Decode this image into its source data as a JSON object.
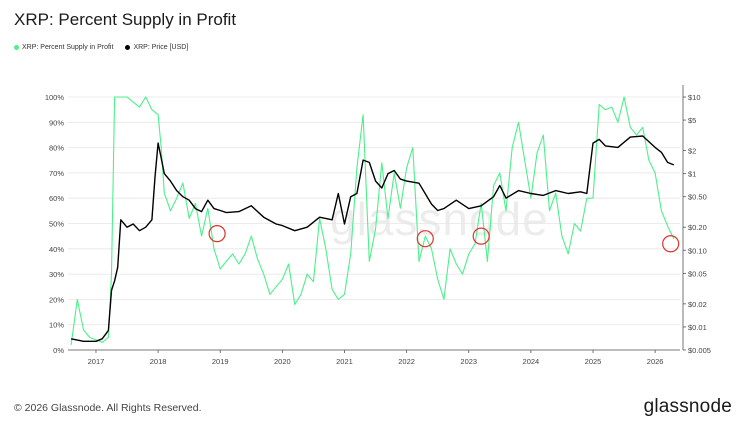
{
  "title": "XRP: Percent Supply in Profit",
  "legend": [
    {
      "label": "XRP: Percent Supply in Profit",
      "color": "#4cf08a"
    },
    {
      "label": "XRP: Price [USD]",
      "color": "#000000"
    }
  ],
  "footer": "© 2026 Glassnode. All Rights Reserved.",
  "brand": "glassnode",
  "watermark": "glassnode",
  "chart_data": {
    "type": "line",
    "x_tick_labels": [
      "2017",
      "2018",
      "2019",
      "2020",
      "2021",
      "2022",
      "2023",
      "2024",
      "2025",
      "2026"
    ],
    "left_axis": {
      "labels": [
        "0%",
        "10%",
        "20%",
        "30%",
        "40%",
        "50%",
        "60%",
        "70%",
        "80%",
        "90%",
        "100%"
      ],
      "range": [
        0,
        100
      ],
      "grid": true
    },
    "right_axis": {
      "labels": [
        "$0.005",
        "$0.01",
        "$0.02",
        "$0.05",
        "$0.10",
        "$0.20",
        "$0.50",
        "$1",
        "$2",
        "$5",
        "$10"
      ],
      "scale": "log",
      "range": [
        0.005,
        10
      ]
    },
    "series": [
      {
        "name": "XRP: Percent Supply in Profit",
        "color": "#4cf08a",
        "axis": "left",
        "x": [
          2016.6,
          2016.7,
          2016.8,
          2016.9,
          2017.0,
          2017.1,
          2017.2,
          2017.25,
          2017.3,
          2017.4,
          2017.5,
          2017.6,
          2017.7,
          2017.8,
          2017.9,
          2018.0,
          2018.05,
          2018.1,
          2018.2,
          2018.3,
          2018.4,
          2018.5,
          2018.6,
          2018.7,
          2018.8,
          2018.9,
          2019.0,
          2019.1,
          2019.2,
          2019.3,
          2019.4,
          2019.5,
          2019.6,
          2019.7,
          2019.8,
          2019.9,
          2020.0,
          2020.1,
          2020.2,
          2020.3,
          2020.4,
          2020.5,
          2020.6,
          2020.7,
          2020.8,
          2020.9,
          2021.0,
          2021.1,
          2021.2,
          2021.3,
          2021.4,
          2021.5,
          2021.6,
          2021.7,
          2021.8,
          2021.9,
          2022.0,
          2022.1,
          2022.2,
          2022.3,
          2022.4,
          2022.5,
          2022.6,
          2022.7,
          2022.8,
          2022.9,
          2023.0,
          2023.1,
          2023.2,
          2023.3,
          2023.4,
          2023.5,
          2023.6,
          2023.7,
          2023.8,
          2023.9,
          2024.0,
          2024.1,
          2024.2,
          2024.3,
          2024.4,
          2024.5,
          2024.6,
          2024.7,
          2024.8,
          2024.9,
          2025.0,
          2025.1,
          2025.2,
          2025.3,
          2025.4,
          2025.5,
          2025.6,
          2025.7,
          2025.8,
          2025.9,
          2026.0,
          2026.1,
          2026.2,
          2026.3
        ],
        "y": [
          2,
          20,
          8,
          5,
          4,
          3,
          5,
          30,
          100,
          100,
          100,
          98,
          96,
          100,
          95,
          93,
          80,
          62,
          55,
          60,
          66,
          52,
          58,
          45,
          56,
          40,
          32,
          35,
          38,
          34,
          38,
          45,
          36,
          30,
          22,
          25,
          28,
          34,
          18,
          22,
          30,
          27,
          52,
          40,
          24,
          20,
          22,
          38,
          72,
          93,
          35,
          48,
          74,
          52,
          70,
          56,
          72,
          80,
          35,
          45,
          40,
          28,
          20,
          40,
          34,
          30,
          38,
          42,
          58,
          35,
          65,
          70,
          55,
          80,
          90,
          75,
          60,
          78,
          85,
          55,
          62,
          45,
          38,
          50,
          47,
          60,
          60,
          97,
          95,
          96,
          90,
          100,
          88,
          85,
          88,
          75,
          70,
          55,
          49,
          44
        ]
      },
      {
        "name": "XRP: Price [USD]",
        "color": "#000000",
        "axis": "right",
        "x": [
          2016.6,
          2016.8,
          2017.0,
          2017.1,
          2017.2,
          2017.25,
          2017.3,
          2017.35,
          2017.4,
          2017.5,
          2017.6,
          2017.7,
          2017.8,
          2017.9,
          2017.95,
          2018.0,
          2018.05,
          2018.1,
          2018.2,
          2018.3,
          2018.4,
          2018.5,
          2018.6,
          2018.7,
          2018.8,
          2018.9,
          2019.0,
          2019.1,
          2019.3,
          2019.5,
          2019.7,
          2019.9,
          2020.0,
          2020.2,
          2020.4,
          2020.6,
          2020.8,
          2020.9,
          2021.0,
          2021.1,
          2021.2,
          2021.3,
          2021.4,
          2021.5,
          2021.6,
          2021.7,
          2021.8,
          2021.9,
          2022.0,
          2022.2,
          2022.4,
          2022.5,
          2022.6,
          2022.8,
          2023.0,
          2023.2,
          2023.4,
          2023.5,
          2023.6,
          2023.8,
          2024.0,
          2024.2,
          2024.4,
          2024.6,
          2024.8,
          2024.9,
          2025.0,
          2025.1,
          2025.2,
          2025.4,
          2025.6,
          2025.8,
          2026.0,
          2026.1,
          2026.2,
          2026.3
        ],
        "y": [
          0.007,
          0.0065,
          0.0065,
          0.007,
          0.009,
          0.03,
          0.04,
          0.06,
          0.25,
          0.2,
          0.22,
          0.18,
          0.2,
          0.25,
          0.9,
          2.5,
          1.6,
          1.0,
          0.8,
          0.6,
          0.5,
          0.45,
          0.35,
          0.32,
          0.45,
          0.35,
          0.33,
          0.31,
          0.32,
          0.38,
          0.27,
          0.22,
          0.21,
          0.18,
          0.2,
          0.27,
          0.25,
          0.55,
          0.22,
          0.5,
          0.55,
          1.5,
          1.4,
          0.8,
          0.65,
          1.0,
          1.1,
          0.85,
          0.8,
          0.75,
          0.4,
          0.33,
          0.35,
          0.45,
          0.35,
          0.38,
          0.5,
          0.7,
          0.48,
          0.6,
          0.55,
          0.52,
          0.6,
          0.55,
          0.58,
          0.55,
          2.5,
          2.8,
          2.3,
          2.2,
          3.0,
          3.1,
          2.2,
          1.9,
          1.4,
          1.3
        ]
      }
    ]
  }
}
